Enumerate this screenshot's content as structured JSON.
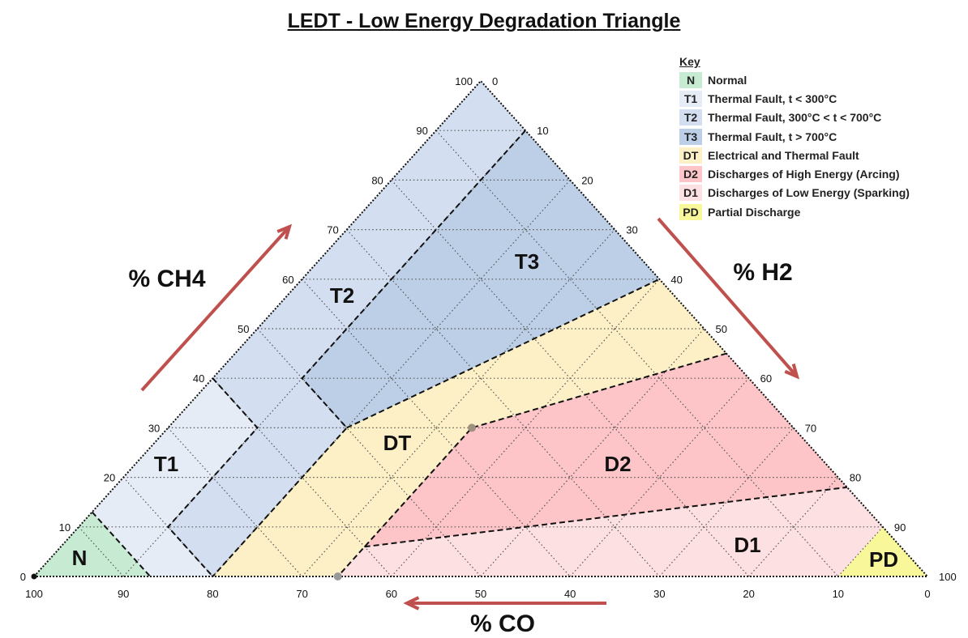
{
  "title": "LEDT - Low Energy Degradation Triangle",
  "axes": {
    "ch4": {
      "label": "% CH4",
      "ticks": [
        "0",
        "10",
        "20",
        "30",
        "40",
        "50",
        "60",
        "70",
        "80",
        "90",
        "100"
      ]
    },
    "h2": {
      "label": "% H2",
      "ticks": [
        "0",
        "10",
        "20",
        "30",
        "40",
        "50",
        "60",
        "70",
        "80",
        "90",
        "100"
      ]
    },
    "co": {
      "label": "% CO",
      "ticks": [
        "100",
        "90",
        "80",
        "70",
        "60",
        "50",
        "40",
        "30",
        "20",
        "10",
        "0"
      ]
    }
  },
  "legend": {
    "title": "Key",
    "items": [
      {
        "code": "N",
        "label": "Normal",
        "color": "#c6ebd2"
      },
      {
        "code": "T1",
        "label": "Thermal Fault, t < 300°C",
        "color": "#e6ecf6"
      },
      {
        "code": "T2",
        "label": "Thermal Fault, 300°C < t < 700°C",
        "color": "#d3def0"
      },
      {
        "code": "T3",
        "label": "Thermal Fault, t > 700°C",
        "color": "#bccfe7"
      },
      {
        "code": "DT",
        "label": "Electrical and Thermal Fault",
        "color": "#fdf0c6"
      },
      {
        "code": "D2",
        "label": "Discharges of High Energy (Arcing)",
        "color": "#fdc5c8"
      },
      {
        "code": "D1",
        "label": "Discharges of Low Energy (Sparking)",
        "color": "#fde0e2"
      },
      {
        "code": "PD",
        "label": "Partial Discharge",
        "color": "#f8f79a"
      }
    ]
  },
  "regions": [
    {
      "code": "N",
      "color": "#c6ebd2",
      "points_ch4_h2": [
        [
          0,
          0
        ],
        [
          13,
          0
        ],
        [
          0,
          13
        ]
      ]
    },
    {
      "code": "T1",
      "color": "#e6ecf6",
      "points_ch4_h2": [
        [
          13,
          0
        ],
        [
          40,
          0
        ],
        [
          30,
          10
        ],
        [
          10,
          10
        ],
        [
          0,
          20
        ],
        [
          0,
          13
        ]
      ]
    },
    {
      "code": "T2",
      "color": "#d3def0",
      "points_ch4_h2": [
        [
          40,
          0
        ],
        [
          100,
          0
        ],
        [
          90,
          10
        ],
        [
          40,
          10
        ],
        [
          30,
          20
        ],
        [
          20,
          20
        ],
        [
          0,
          20
        ],
        [
          10,
          10
        ],
        [
          30,
          10
        ]
      ]
    },
    {
      "code": "T3",
      "color": "#bccfe7",
      "points_ch4_h2": [
        [
          90,
          10
        ],
        [
          60,
          40
        ],
        [
          30,
          20
        ],
        [
          40,
          10
        ]
      ]
    },
    {
      "code": "DT",
      "color": "#fdf0c6",
      "points_ch4_h2": [
        [
          30,
          20
        ],
        [
          60,
          40
        ],
        [
          45,
          55
        ],
        [
          30,
          34
        ],
        [
          6,
          34
        ],
        [
          0,
          34
        ],
        [
          0,
          20
        ],
        [
          20,
          20
        ]
      ]
    },
    {
      "code": "D2",
      "color": "#fdc5c8",
      "points_ch4_h2": [
        [
          30,
          34
        ],
        [
          45,
          55
        ],
        [
          18,
          82
        ],
        [
          6,
          34
        ]
      ]
    },
    {
      "code": "D1",
      "color": "#fde0e2",
      "points_ch4_h2": [
        [
          6,
          34
        ],
        [
          18,
          82
        ],
        [
          10,
          90
        ],
        [
          0,
          90
        ],
        [
          0,
          34
        ]
      ]
    },
    {
      "code": "PD",
      "color": "#f8f79a",
      "points_ch4_h2": [
        [
          10,
          90
        ],
        [
          0,
          100
        ],
        [
          0,
          90
        ]
      ]
    }
  ],
  "arrow_color": "#c0504d"
}
